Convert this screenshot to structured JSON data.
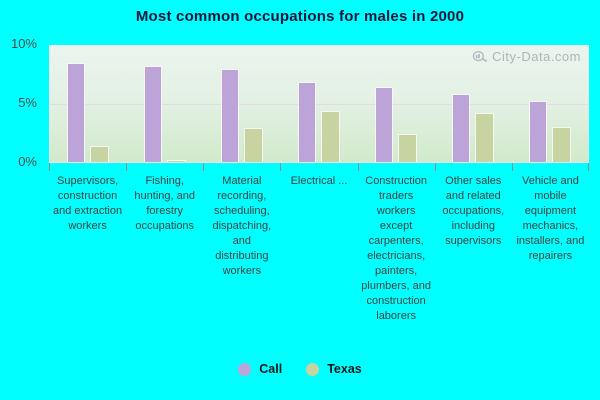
{
  "title": "Most common occupations for males in 2000",
  "watermark": "City-Data.com",
  "colors": {
    "background": "#00ffff",
    "call_series": "#bda4d8",
    "texas_series": "#c7d3a0",
    "title_text": "#15153c",
    "axis_text": "#4c4c4c",
    "watermark_text": "#aeb6ba"
  },
  "chart_data": {
    "type": "bar",
    "title": "Most common occupations for males in 2000",
    "categories": [
      "Supervisors, construction and extraction workers",
      "Fishing, hunting, and forestry occupations",
      "Material recording, scheduling, dispatching, and distributing workers",
      "Electrical ...",
      "Construction traders workers except carpenters, electricians, painters, plumbers, and construction laborers",
      "Other sales and related occupations, including supervisors",
      "Vehicle and mobile equipment mechanics, installers, and repairers"
    ],
    "series": [
      {
        "name": "Call",
        "color": "#bda4d8",
        "values": [
          8.5,
          8.3,
          8.0,
          6.9,
          6.5,
          5.9,
          5.3
        ]
      },
      {
        "name": "Texas",
        "color": "#c7d3a0",
        "values": [
          1.4,
          0.2,
          2.9,
          4.4,
          2.4,
          4.2,
          3.0
        ]
      }
    ],
    "xlabel": "",
    "ylabel": "",
    "ylim": [
      0,
      10
    ],
    "yticks": [
      {
        "label": "0%",
        "value": 0
      },
      {
        "label": "5%",
        "value": 5
      },
      {
        "label": "10%",
        "value": 10
      }
    ],
    "grid": "single horizontal gridline at 5%",
    "legend_position": "bottom-center"
  }
}
